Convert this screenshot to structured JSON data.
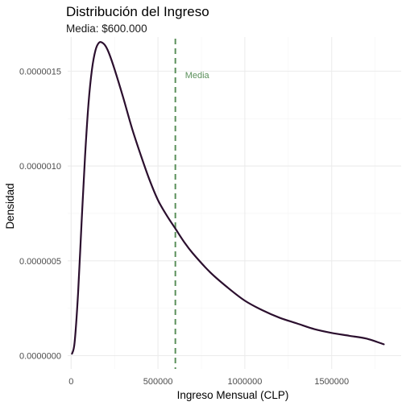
{
  "chart_data": {
    "type": "line",
    "title": "Distribución del Ingreso",
    "subtitle": "Media: $600.000",
    "xlabel": "Ingreso Mensual (CLP)",
    "ylabel": "Densidad",
    "xlim": [
      -20000,
      1900000
    ],
    "ylim": [
      -7e-08,
      1.68e-06
    ],
    "x_ticks": [
      0,
      500000,
      1000000,
      1500000
    ],
    "x_tick_labels": [
      "0",
      "500000",
      "1000000",
      "1500000"
    ],
    "y_ticks": [
      0,
      5e-07,
      1e-06,
      1.5e-06
    ],
    "y_tick_labels": [
      "0.0000000",
      "0.0000005",
      "0.0000010",
      "0.0000015"
    ],
    "grid": true,
    "line_color": "#2b0f2e",
    "series": [
      {
        "x": [
          5000,
          20000,
          40000,
          60000,
          80000,
          100000,
          120000,
          140000,
          160000,
          180000,
          200000,
          220000,
          250000,
          300000,
          350000,
          400000,
          450000,
          500000,
          550000,
          600000,
          650000,
          700000,
          800000,
          900000,
          1000000,
          1100000,
          1200000,
          1300000,
          1400000,
          1500000,
          1600000,
          1700000,
          1800000
        ],
        "y": [
          1e-08,
          7e-08,
          3.3e-07,
          7e-07,
          1.05e-06,
          1.33e-06,
          1.51e-06,
          1.61e-06,
          1.65e-06,
          1.65e-06,
          1.63e-06,
          1.59e-06,
          1.51e-06,
          1.36e-06,
          1.2e-06,
          1.06e-06,
          9.3e-07,
          8.2e-07,
          7.4e-07,
          6.7e-07,
          6e-07,
          5.4e-07,
          4.4e-07,
          3.6e-07,
          2.9e-07,
          2.4e-07,
          2e-07,
          1.7e-07,
          1.4e-07,
          1.2e-07,
          1.05e-07,
          9e-08,
          6e-08
        ]
      }
    ],
    "reference_line": {
      "x": 600000,
      "label": "Media",
      "label_y": 1.48e-06,
      "color": "#5a8f5a",
      "style": "dashed"
    }
  }
}
